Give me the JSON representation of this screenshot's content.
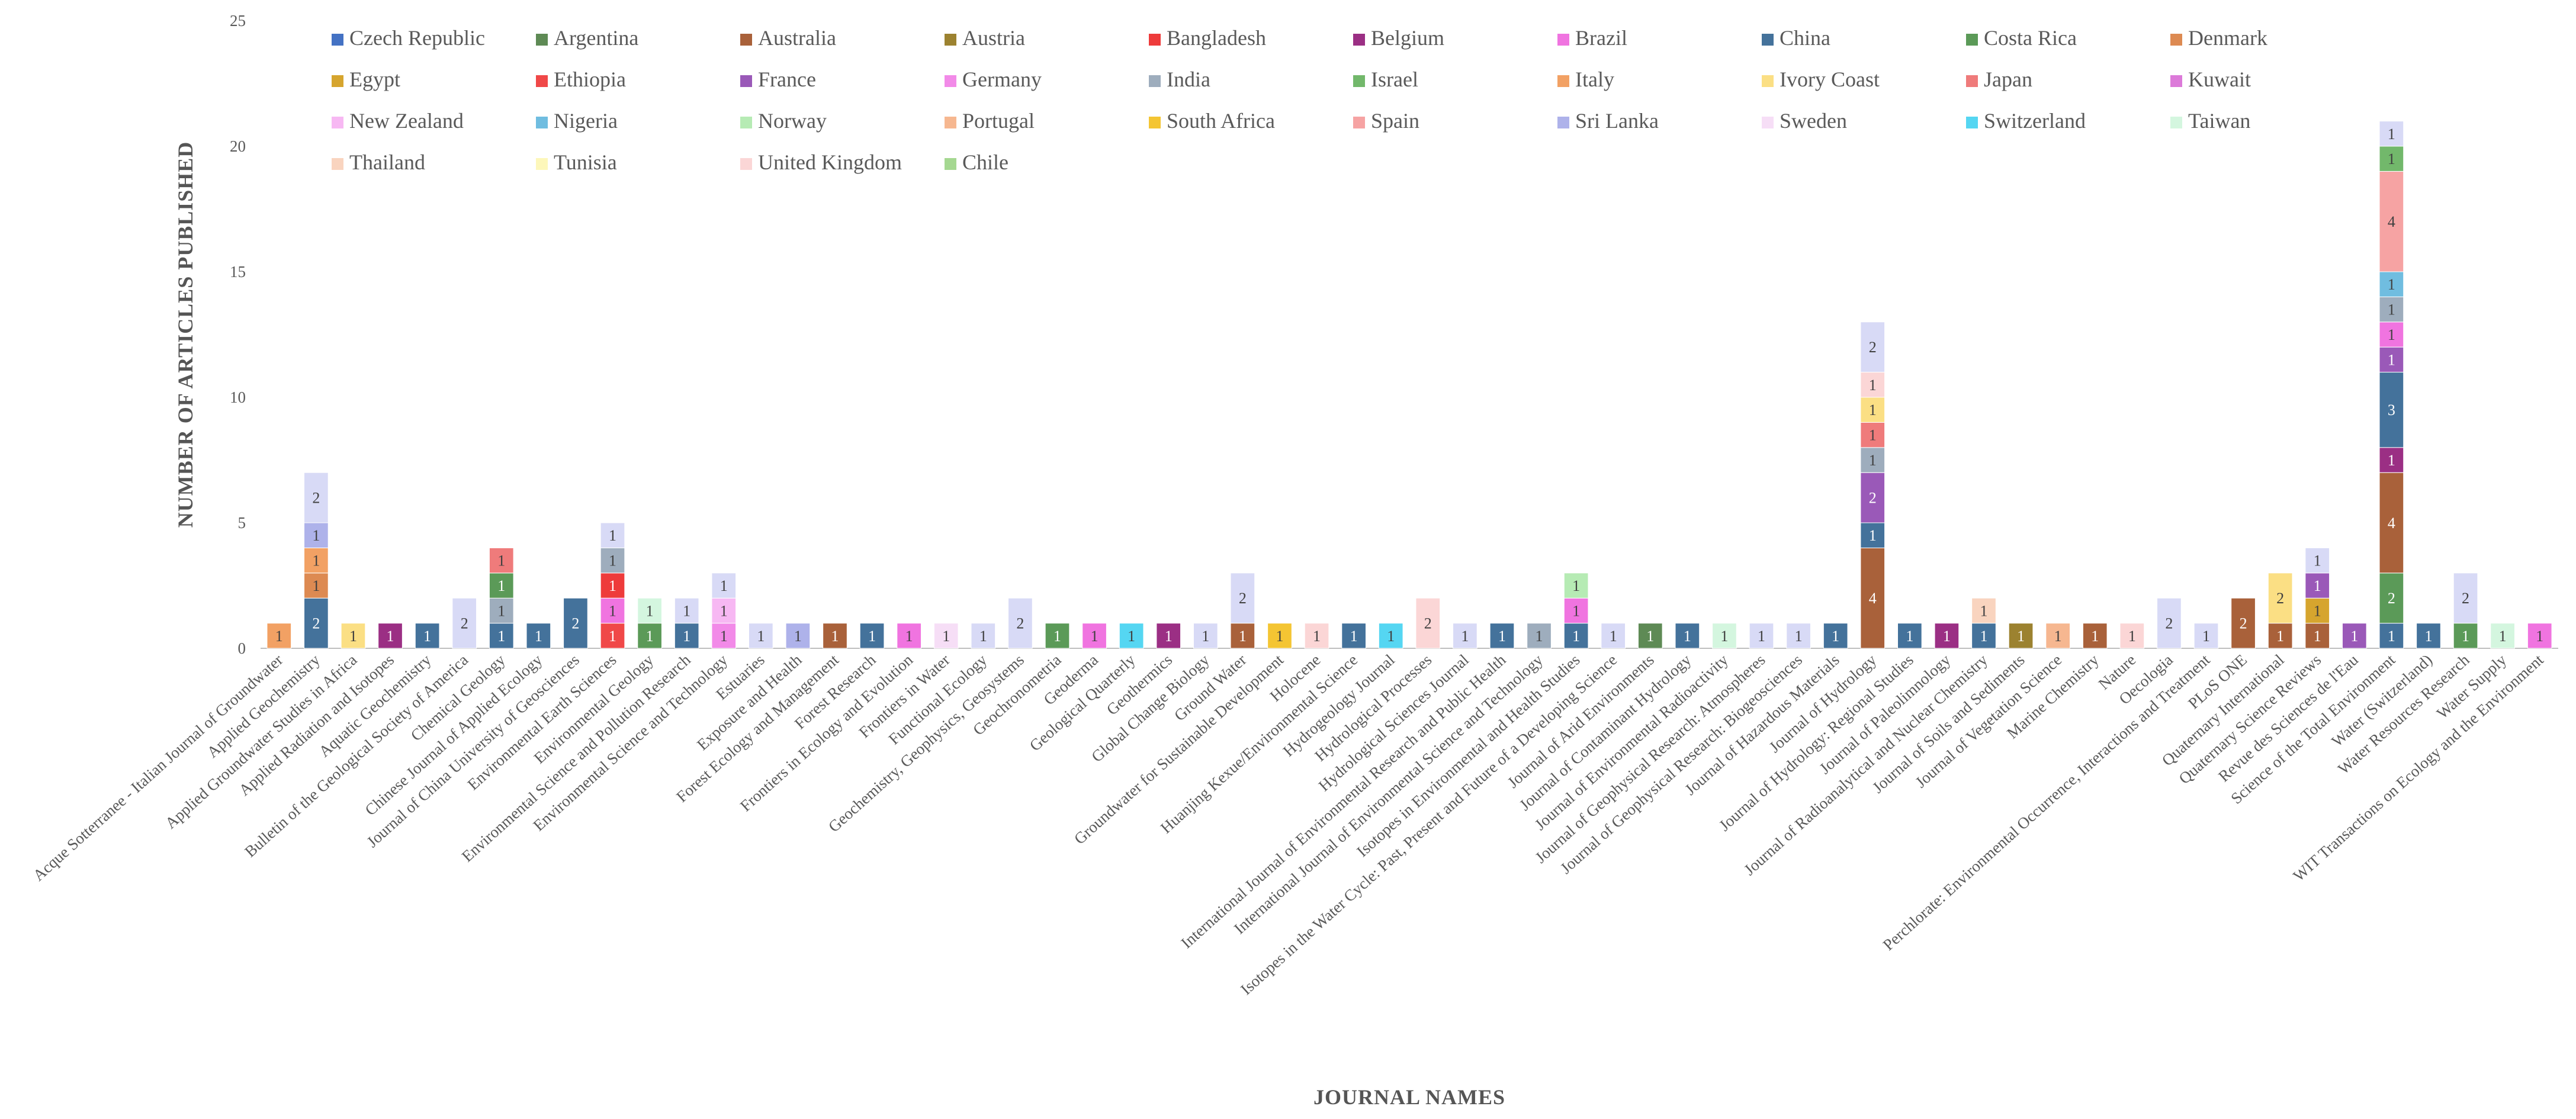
{
  "chart_data": {
    "type": "bar",
    "stacked": true,
    "title": "",
    "xlabel": "JOURNAL NAMES",
    "ylabel": "NUMBER OF ARTICLES PUBLISHED",
    "ylim": [
      0,
      25
    ],
    "yticks": [
      "0",
      "5",
      "10",
      "15",
      "20",
      "25"
    ],
    "grid": false,
    "legend_position": "top-left (inside plot)",
    "categories": [
      "Acque Sotterranee - Italian Journal of Groundwater",
      "Applied Geochemistry",
      "Applied Groundwater Studies in Africa",
      "Applied Radiation and Isotopes",
      "Aquatic Geochemistry",
      "Bulletin of the Geological Society of America",
      "Chemical Geology",
      "Chinese Journal of Applied Ecology",
      "Journal of China University of Geosciences",
      "Environmental Earth Sciences",
      "Environmental Geology",
      "Environmental Science and Pollution Research",
      "Environmental Science and Technology",
      "Estuaries",
      "Exposure and Health",
      "Forest Ecology and Management",
      "Forest Research",
      "Frontiers in Ecology and Evolution",
      "Frontiers in Water",
      "Functional Ecology",
      "Geochemistry, Geophysics, Geosystems",
      "Geochronometria",
      "Geoderma",
      "Geological Quarterly",
      "Geothermics",
      "Global Change Biology",
      "Ground Water",
      "Groundwater for Sustainable Development",
      "Holocene",
      "Huanjing Kexue/Environmental Science",
      "Hydrogeology Journal",
      "Hydrological Processes",
      "Hydrological Sciences Journal",
      "International Journal of Environmental Research and Public Health",
      "International Journal of Environmental Science and Technology",
      "Isotopes in Environmental and Health Studies",
      "Isotopes in the Water Cycle: Past, Present and Future of a Developing Science",
      "Journal of Arid Environments",
      "Journal of Contaminant Hydrology",
      "Journal of Environmental Radioactivity",
      "Journal of Geophysical Research: Atmospheres",
      "Journal of Geophysical Research: Biogeosciences",
      "Journal of Hazardous Materials",
      "Journal of Hydrology",
      "Journal of Hydrology: Regional Studies",
      "Journal of Paleolimnology",
      "Journal of Radioanalytical and Nuclear Chemistry",
      "Journal of Soils and Sediments",
      "Journal of Vegetation Science",
      "Marine Chemistry",
      "Nature",
      "Oecologia",
      "Perchlorate: Environmental Occurrence, Interactions and Treatment",
      "PLoS ONE",
      "Quaternary International",
      "Quaternary Science Reviews",
      "Revue des Sciences de l'Eau",
      "Science of the Total Environment",
      "Water (Switzerland)",
      "Water Resources Research",
      "Water Supply",
      "WIT Transactions on Ecology and the Environment"
    ],
    "series": [
      {
        "name": "Czech Republic",
        "color": "#4472c4"
      },
      {
        "name": "Argentina",
        "color": "#5e8a55"
      },
      {
        "name": "Australia",
        "color": "#a9613a"
      },
      {
        "name": "Austria",
        "color": "#9c8230"
      },
      {
        "name": "Bangladesh",
        "color": "#ee3b3b"
      },
      {
        "name": "Belgium",
        "color": "#9b2f84"
      },
      {
        "name": "Brazil",
        "color": "#f074e0"
      },
      {
        "name": "China",
        "color": "#44729b"
      },
      {
        "name": "Costa Rica",
        "color": "#5b9a58"
      },
      {
        "name": "Denmark",
        "color": "#dd8a52"
      },
      {
        "name": "Egypt",
        "color": "#d6a52e"
      },
      {
        "name": "Ethiopia",
        "color": "#f04848"
      },
      {
        "name": "France",
        "color": "#9a59b8"
      },
      {
        "name": "Germany",
        "color": "#f28ae8"
      },
      {
        "name": "India",
        "color": "#9eadbd"
      },
      {
        "name": "Israel",
        "color": "#72b86b"
      },
      {
        "name": "Italy",
        "color": "#f2a164"
      },
      {
        "name": "Ivory Coast",
        "color": "#fbdf84"
      },
      {
        "name": "Japan",
        "color": "#ef7b7b"
      },
      {
        "name": "Kuwait",
        "color": "#dc7ad9"
      },
      {
        "name": "New Zealand",
        "color": "#f7b8f3"
      },
      {
        "name": "Nigeria",
        "color": "#70bde0"
      },
      {
        "name": "Norway",
        "color": "#b6ebb4"
      },
      {
        "name": "Portugal",
        "color": "#f6b790"
      },
      {
        "name": "South Africa",
        "color": "#f4c533"
      },
      {
        "name": "Spain",
        "color": "#f6a3a3"
      },
      {
        "name": "Sri Lanka",
        "color": "#aeb2ea"
      },
      {
        "name": "Sweden",
        "color": "#f6def6"
      },
      {
        "name": "Switzerland",
        "color": "#55d6f2"
      },
      {
        "name": "Taiwan",
        "color": "#d4f6df"
      },
      {
        "name": "Thailand",
        "color": "#f9d4bf"
      },
      {
        "name": "Tunisia",
        "color": "#fdf7ba"
      },
      {
        "name": "United Kingdom",
        "color": "#fbd6d6"
      },
      {
        "name": "Chile",
        "color": "#a5d891"
      }
    ],
    "stack_fill_color": "#d8daf6",
    "stacks": [
      [
        [
          "Italy",
          1
        ]
      ],
      [
        [
          "China",
          2
        ],
        [
          "Denmark",
          1
        ],
        [
          "Italy",
          1
        ],
        [
          "Sri Lanka",
          1
        ],
        [
          "",
          2
        ]
      ],
      [
        [
          "Ivory Coast",
          1
        ]
      ],
      [
        [
          "Belgium",
          1
        ]
      ],
      [
        [
          "China",
          1
        ]
      ],
      [
        [
          "",
          2
        ]
      ],
      [
        [
          "China",
          1
        ],
        [
          "India",
          1
        ],
        [
          "Costa Rica",
          1
        ],
        [
          "Japan",
          1
        ]
      ],
      [
        [
          "China",
          1
        ]
      ],
      [
        [
          "China",
          2
        ]
      ],
      [
        [
          "Ethiopia",
          1
        ],
        [
          "Brazil",
          1
        ],
        [
          "Bangladesh",
          1
        ],
        [
          "India",
          1
        ],
        [
          "",
          1
        ]
      ],
      [
        [
          "Costa Rica",
          1
        ],
        [
          "Taiwan",
          1
        ]
      ],
      [
        [
          "China",
          1
        ],
        [
          "",
          1
        ]
      ],
      [
        [
          "Germany",
          1
        ],
        [
          "New Zealand",
          1
        ],
        [
          "",
          1
        ]
      ],
      [
        [
          "",
          1
        ]
      ],
      [
        [
          "Sri Lanka",
          1
        ]
      ],
      [
        [
          "Australia",
          1
        ]
      ],
      [
        [
          "China",
          1
        ]
      ],
      [
        [
          "Brazil",
          1
        ]
      ],
      [
        [
          "Sweden",
          1
        ]
      ],
      [
        [
          "",
          1
        ]
      ],
      [
        [
          "",
          2
        ]
      ],
      [
        [
          "Costa Rica",
          1
        ]
      ],
      [
        [
          "Brazil",
          1
        ]
      ],
      [
        [
          "Switzerland",
          1
        ]
      ],
      [
        [
          "Belgium",
          1
        ]
      ],
      [
        [
          "",
          1
        ]
      ],
      [
        [
          "Australia",
          1
        ],
        [
          "",
          2
        ]
      ],
      [
        [
          "South Africa",
          1
        ]
      ],
      [
        [
          "United Kingdom",
          1
        ]
      ],
      [
        [
          "China",
          1
        ]
      ],
      [
        [
          "Switzerland",
          1
        ]
      ],
      [
        [
          "United Kingdom",
          2
        ]
      ],
      [
        [
          "",
          1
        ]
      ],
      [
        [
          "China",
          1
        ]
      ],
      [
        [
          "India",
          1
        ]
      ],
      [
        [
          "China",
          1
        ],
        [
          "Brazil",
          1
        ],
        [
          "Norway",
          1
        ]
      ],
      [
        [
          "",
          1
        ]
      ],
      [
        [
          "Argentina",
          1
        ]
      ],
      [
        [
          "China",
          1
        ]
      ],
      [
        [
          "Taiwan",
          1
        ]
      ],
      [
        [
          "",
          1
        ]
      ],
      [
        [
          "",
          1
        ]
      ],
      [
        [
          "China",
          1
        ]
      ],
      [
        [
          "Australia",
          4
        ],
        [
          "China",
          1
        ],
        [
          "France",
          2
        ],
        [
          "India",
          1
        ],
        [
          "Japan",
          1
        ],
        [
          "Ivory Coast",
          1
        ],
        [
          "United Kingdom",
          1
        ],
        [
          "",
          2
        ]
      ],
      [
        [
          "China",
          1
        ]
      ],
      [
        [
          "Belgium",
          1
        ]
      ],
      [
        [
          "China",
          1
        ],
        [
          "Thailand",
          1
        ]
      ],
      [
        [
          "Austria",
          1
        ]
      ],
      [
        [
          "Portugal",
          1
        ]
      ],
      [
        [
          "Australia",
          1
        ]
      ],
      [
        [
          "United Kingdom",
          1
        ]
      ],
      [
        [
          "",
          2
        ]
      ],
      [
        [
          "",
          1
        ]
      ],
      [
        [
          "Australia",
          2
        ]
      ],
      [
        [
          "Australia",
          1
        ],
        [
          "Ivory Coast",
          2
        ]
      ],
      [
        [
          "Australia",
          1
        ],
        [
          "Egypt",
          1
        ],
        [
          "France",
          1
        ],
        [
          "",
          1
        ]
      ],
      [
        [
          "France",
          1
        ]
      ],
      [
        [
          "China",
          1
        ],
        [
          "Costa Rica",
          2
        ],
        [
          "Australia",
          4
        ],
        [
          "Belgium",
          1
        ],
        [
          "China",
          3
        ],
        [
          "France",
          1
        ],
        [
          "Brazil",
          1
        ],
        [
          "India",
          1
        ],
        [
          "Nigeria",
          1
        ],
        [
          "Spain",
          4
        ],
        [
          "Israel",
          1
        ],
        [
          "",
          1
        ]
      ],
      [
        [
          "China",
          1
        ]
      ],
      [
        [
          "Costa Rica",
          1
        ],
        [
          "",
          2
        ]
      ],
      [
        [
          "Taiwan",
          1
        ]
      ],
      [
        [
          "Brazil",
          1
        ]
      ]
    ]
  }
}
